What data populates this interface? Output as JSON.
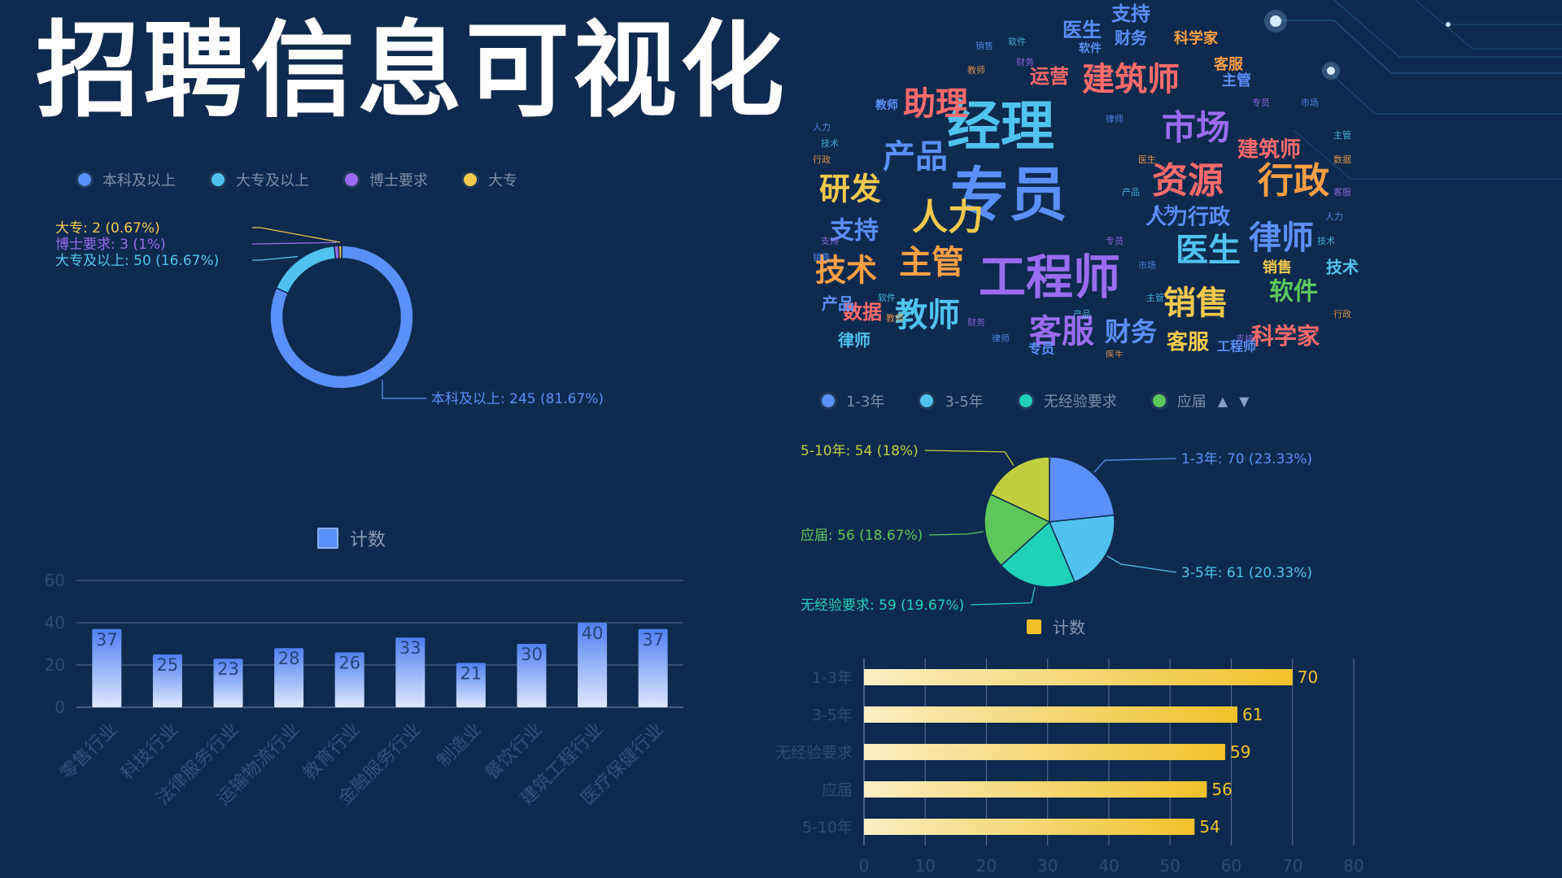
{
  "title": "招聘信息可视化",
  "colors": {
    "background": "#0e2a4e",
    "blue": "#5b8ff9",
    "cyan": "#4fc3ee",
    "purple": "#9a6cf0",
    "yellow": "#f2c94c",
    "teal": "#1fd1b9",
    "green": "#5ec75b",
    "olive": "#bfcf3e",
    "bar_gold": "#f0c22a"
  },
  "wordcloud": {
    "words": [
      {
        "text": "专员",
        "size": 72,
        "color": "#5b8ff9"
      },
      {
        "text": "经理",
        "size": 66,
        "color": "#4fc3ee"
      },
      {
        "text": "工程师",
        "size": 58,
        "color": "#9a6cf0"
      },
      {
        "text": "人力",
        "size": 44,
        "color": "#f2c94c"
      },
      {
        "text": "资源",
        "size": 44,
        "color": "#ff6b6b"
      },
      {
        "text": "行政",
        "size": 44,
        "color": "#ff9f43"
      },
      {
        "text": "市场",
        "size": 42,
        "color": "#9a6cf0"
      },
      {
        "text": "建筑师",
        "size": 40,
        "color": "#ff6b6b"
      },
      {
        "text": "助理",
        "size": 40,
        "color": "#ff6b6b"
      },
      {
        "text": "产品",
        "size": 40,
        "color": "#5b8ff9"
      },
      {
        "text": "研发",
        "size": 38,
        "color": "#f2c94c"
      },
      {
        "text": "主管",
        "size": 40,
        "color": "#ff9f43"
      },
      {
        "text": "技术",
        "size": 38,
        "color": "#ff9f43"
      },
      {
        "text": "医生",
        "size": 40,
        "color": "#4fc3ee"
      },
      {
        "text": "律师",
        "size": 40,
        "color": "#5b8ff9"
      },
      {
        "text": "销售",
        "size": 40,
        "color": "#f2c94c"
      },
      {
        "text": "教师",
        "size": 40,
        "color": "#4fc3ee"
      },
      {
        "text": "客服",
        "size": 40,
        "color": "#9a6cf0"
      },
      {
        "text": "财务",
        "size": 32,
        "color": "#5b8ff9"
      },
      {
        "text": "软件",
        "size": 30,
        "color": "#5ec75b"
      },
      {
        "text": "科学家",
        "size": 28,
        "color": "#ff6b6b"
      },
      {
        "text": "支持",
        "size": 30,
        "color": "#5b8ff9"
      },
      {
        "text": "数据",
        "size": 24,
        "color": "#ff6b6b"
      },
      {
        "text": "运营",
        "size": 24,
        "color": "#ff6b6b"
      },
      {
        "text": "建筑师",
        "size": 26,
        "color": "#ff6b6b"
      },
      {
        "text": "人力行政",
        "size": 26,
        "color": "#5b8ff9"
      },
      {
        "text": "客服",
        "size": 26,
        "color": "#f2c94c"
      },
      {
        "text": "支持",
        "size": 24,
        "color": "#5b8ff9"
      },
      {
        "text": "医生",
        "size": 24,
        "color": "#5b8ff9"
      },
      {
        "text": "财务",
        "size": 20,
        "color": "#5b8ff9"
      },
      {
        "text": "科学家",
        "size": 18,
        "color": "#ff9f43"
      },
      {
        "text": "客服",
        "size": 18,
        "color": "#ff9f43"
      },
      {
        "text": "主管",
        "size": 18,
        "color": "#5b8ff9"
      },
      {
        "text": "律师",
        "size": 20,
        "color": "#4fc3ee"
      },
      {
        "text": "技术",
        "size": 20,
        "color": "#4fc3ee"
      },
      {
        "text": "销售",
        "size": 18,
        "color": "#f2c94c"
      },
      {
        "text": "产品",
        "size": 20,
        "color": "#5b8ff9"
      },
      {
        "text": "工程师",
        "size": 16,
        "color": "#5b8ff9"
      },
      {
        "text": "专员",
        "size": 16,
        "color": "#5b8ff9"
      },
      {
        "text": "软件",
        "size": 14,
        "color": "#5b8ff9"
      },
      {
        "text": "教师",
        "size": 14,
        "color": "#5b8ff9"
      },
      {
        "text": "人力",
        "size": 14,
        "color": "#5b8ff9"
      }
    ]
  },
  "edu_chart": {
    "type": "pie",
    "legend": [
      "本科及以上",
      "大专及以上",
      "博士要求",
      "大专"
    ],
    "slices": [
      {
        "name": "本科及以上",
        "value": 245,
        "percent": "81.67%",
        "color": "#5b8ff9",
        "label": "本科及以上: 245 (81.67%)"
      },
      {
        "name": "大专及以上",
        "value": 50,
        "percent": "16.67%",
        "color": "#4fc3ee",
        "label": "大专及以上: 50 (16.67%)"
      },
      {
        "name": "博士要求",
        "value": 3,
        "percent": "1%",
        "color": "#9a6cf0",
        "label": "博士要求: 3 (1%)"
      },
      {
        "name": "大专",
        "value": 2,
        "percent": "0.67%",
        "color": "#f2c94c",
        "label": "大专: 2 (0.67%)"
      }
    ]
  },
  "exp_chart": {
    "type": "pie",
    "legend": [
      "1-3年",
      "3-5年",
      "无经验要求",
      "应届"
    ],
    "slices": [
      {
        "name": "1-3年",
        "value": 70,
        "percent": "23.33%",
        "color": "#5b8ff9",
        "label": "1-3年: 70 (23.33%)"
      },
      {
        "name": "3-5年",
        "value": 61,
        "percent": "20.33%",
        "color": "#4fc3ee",
        "label": "3-5年: 61 (20.33%)"
      },
      {
        "name": "无经验要求",
        "value": 59,
        "percent": "19.67%",
        "color": "#1fd1b9",
        "label": "无经验要求: 59 (19.67%)"
      },
      {
        "name": "应届",
        "value": 56,
        "percent": "18.67%",
        "color": "#5ec75b",
        "label": "应届: 56 (18.67%)"
      },
      {
        "name": "5-10年",
        "value": 54,
        "percent": "18%",
        "color": "#bfcf3e",
        "label": "5-10年: 54 (18%)"
      }
    ]
  },
  "chart_data": [
    {
      "type": "pie",
      "variant": "donut",
      "legend": [
        "本科及以上",
        "大专及以上",
        "博士要求",
        "大专"
      ],
      "categories": [
        "本科及以上",
        "大专及以上",
        "博士要求",
        "大专"
      ],
      "values": [
        245,
        50,
        3,
        2
      ]
    },
    {
      "type": "pie",
      "legend": [
        "1-3年",
        "3-5年",
        "无经验要求",
        "应届"
      ],
      "categories": [
        "1-3年",
        "3-5年",
        "无经验要求",
        "应届",
        "5-10年"
      ],
      "values": [
        70,
        61,
        59,
        56,
        54
      ]
    },
    {
      "type": "bar",
      "legend": "计数",
      "categories": [
        "零售行业",
        "科技行业",
        "法律服务行业",
        "运输物流行业",
        "教育行业",
        "金融服务行业",
        "制造业",
        "餐饮行业",
        "建筑工程行业",
        "医疗保健行业"
      ],
      "values": [
        37,
        25,
        23,
        28,
        26,
        33,
        21,
        30,
        40,
        37
      ],
      "ylim": [
        0,
        60
      ],
      "yticks": [
        0,
        20,
        40,
        60
      ],
      "grid": true
    },
    {
      "type": "bar",
      "orientation": "horizontal",
      "legend": "计数",
      "categories": [
        "1-3年",
        "3-5年",
        "无经验要求",
        "应届",
        "5-10年"
      ],
      "values": [
        70,
        61,
        59,
        56,
        54
      ],
      "xlim": [
        0,
        80
      ],
      "xticks": [
        0,
        10,
        20,
        30,
        40,
        50,
        60,
        70,
        80
      ],
      "grid": true
    }
  ],
  "industry_chart": {
    "legend": "计数",
    "categories": [
      "零售行业",
      "科技行业",
      "法律服务行业",
      "运输物流行业",
      "教育行业",
      "金融服务行业",
      "制造业",
      "餐饮行业",
      "建筑工程行业",
      "医疗保健行业"
    ],
    "values": [
      37,
      25,
      23,
      28,
      26,
      33,
      21,
      30,
      40,
      37
    ],
    "ymax": 60,
    "yticks": [
      0,
      20,
      40,
      60
    ]
  },
  "exp_bar_chart": {
    "legend": "计数",
    "categories": [
      "1-3年",
      "3-5年",
      "无经验要求",
      "应届",
      "5-10年"
    ],
    "values": [
      70,
      61,
      59,
      56,
      54
    ],
    "xmax": 80,
    "xticks": [
      0,
      10,
      20,
      30,
      40,
      50,
      60,
      70,
      80
    ]
  }
}
